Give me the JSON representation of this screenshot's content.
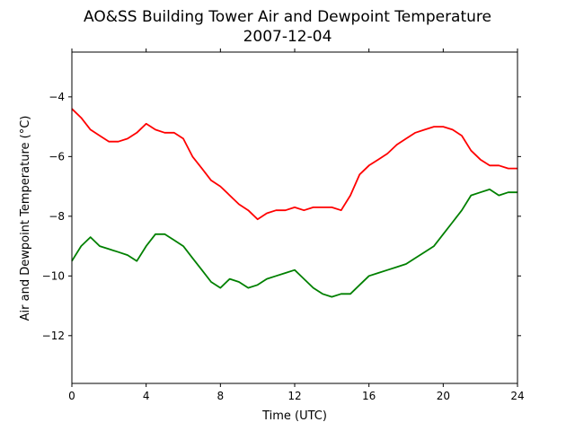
{
  "chart_data": {
    "type": "line",
    "title": "AO&SS Building Tower Air and Dewpoint Temperature",
    "subtitle": "2007-12-04",
    "xlabel": "Time (UTC)",
    "ylabel": "Air and Dewpoint Temperature (°C)",
    "xlim": [
      0,
      24
    ],
    "ylim": [
      -13.6,
      -2.5
    ],
    "xticks": [
      0,
      4,
      8,
      12,
      16,
      20,
      24
    ],
    "yticks": [
      -12,
      -10,
      -8,
      -6,
      -4
    ],
    "grid": false,
    "series": [
      {
        "color": "#ff0000",
        "x": [
          0,
          0.5,
          1,
          1.5,
          2,
          2.5,
          3,
          3.5,
          4,
          4.5,
          5,
          5.5,
          6,
          6.5,
          7,
          7.5,
          8,
          8.5,
          9,
          9.5,
          10,
          10.5,
          11,
          11.5,
          12,
          12.5,
          13,
          13.5,
          14,
          14.5,
          15,
          15.5,
          16,
          16.5,
          17,
          17.5,
          18,
          18.5,
          19,
          19.5,
          20,
          20.5,
          21,
          21.5,
          22,
          22.5,
          23,
          23.5,
          24
        ],
        "values": [
          -4.4,
          -4.7,
          -5.1,
          -5.3,
          -5.5,
          -5.5,
          -5.4,
          -5.2,
          -4.9,
          -5.1,
          -5.2,
          -5.2,
          -5.4,
          -6.0,
          -6.4,
          -6.8,
          -7.0,
          -7.3,
          -7.6,
          -7.8,
          -8.1,
          -7.9,
          -7.8,
          -7.8,
          -7.7,
          -7.8,
          -7.7,
          -7.7,
          -7.7,
          -7.8,
          -7.3,
          -6.6,
          -6.3,
          -6.1,
          -5.9,
          -5.6,
          -5.4,
          -5.2,
          -5.1,
          -5.0,
          -5.0,
          -5.1,
          -5.3,
          -5.8,
          -6.1,
          -6.3,
          -6.3,
          -6.4,
          -6.4
        ]
      },
      {
        "color": "#008000",
        "x": [
          0,
          0.5,
          1,
          1.5,
          2,
          2.5,
          3,
          3.5,
          4,
          4.5,
          5,
          5.5,
          6,
          6.5,
          7,
          7.5,
          8,
          8.5,
          9,
          9.5,
          10,
          10.5,
          11,
          11.5,
          12,
          12.5,
          13,
          13.5,
          14,
          14.5,
          15,
          15.5,
          16,
          16.5,
          17,
          17.5,
          18,
          18.5,
          19,
          19.5,
          20,
          20.5,
          21,
          21.5,
          22,
          22.5,
          23,
          23.5,
          24
        ],
        "values": [
          -9.5,
          -9.0,
          -8.7,
          -9.0,
          -9.1,
          -9.2,
          -9.3,
          -9.5,
          -9.0,
          -8.6,
          -8.6,
          -8.8,
          -9.0,
          -9.4,
          -9.8,
          -10.2,
          -10.4,
          -10.1,
          -10.2,
          -10.4,
          -10.3,
          -10.1,
          -10.0,
          -9.9,
          -9.8,
          -10.1,
          -10.4,
          -10.6,
          -10.7,
          -10.6,
          -10.6,
          -10.3,
          -10.0,
          -9.9,
          -9.8,
          -9.7,
          -9.6,
          -9.4,
          -9.2,
          -9.0,
          -8.6,
          -8.2,
          -7.8,
          -7.3,
          -7.2,
          -7.1,
          -7.3,
          -7.2,
          -7.2
        ]
      }
    ]
  }
}
